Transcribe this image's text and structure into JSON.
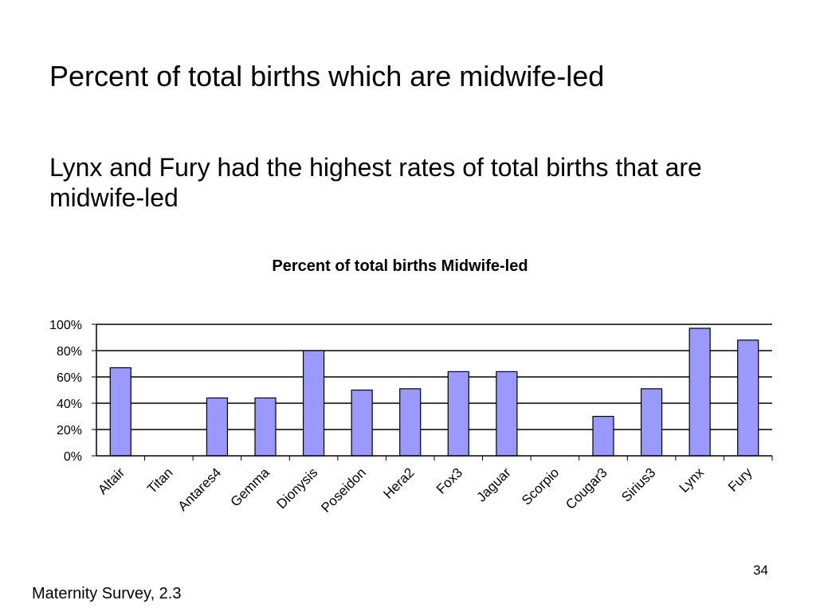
{
  "slide": {
    "title": "Percent of total births which are midwife-led",
    "subtitle": "Lynx and Fury had the highest rates of total births that are midwife-led",
    "page_number": "34",
    "footer": "Maternity Survey, 2.3"
  },
  "chart_data": {
    "type": "bar",
    "title": "Percent of total births Midwife-led",
    "xlabel": "",
    "ylabel": "",
    "categories": [
      "Altair",
      "Titan",
      "Antares4",
      "Gemma",
      "Dionysis",
      "Poseidon",
      "Hera2",
      "Fox3",
      "Jaguar",
      "Scorpio",
      "Cougar3",
      "Sirius3",
      "Lynx",
      "Fury"
    ],
    "values": [
      67,
      0,
      44,
      44,
      80,
      50,
      51,
      64,
      64,
      0,
      30,
      51,
      97,
      88
    ],
    "ylim": [
      0,
      100
    ],
    "yticks": [
      "0%",
      "20%",
      "40%",
      "60%",
      "80%",
      "100%"
    ],
    "grid": true,
    "legend": "none",
    "colors": {
      "bar_fill": "#9999ff",
      "bar_stroke": "#000000",
      "grid": "#000000"
    }
  }
}
